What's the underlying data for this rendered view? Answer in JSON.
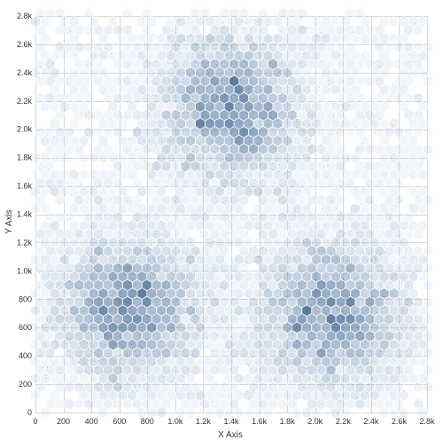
{
  "chart_data": {
    "type": "hexbin-scatter",
    "xlabel": "X Axis",
    "ylabel": "Y Axis",
    "xlim": [
      0,
      2800
    ],
    "ylim": [
      0,
      2800
    ],
    "x_ticks": [
      0,
      200,
      400,
      600,
      800,
      1000,
      1200,
      1400,
      1600,
      1800,
      2000,
      2200,
      2400,
      2600,
      2800
    ],
    "x_tick_labels": [
      "0",
      "200",
      "400",
      "600",
      "800",
      "1.0k",
      "1.2k",
      "1.4k",
      "1.6k",
      "1.8k",
      "2.0k",
      "2.2k",
      "2.4k",
      "2.6k",
      "2.8k"
    ],
    "y_ticks": [
      0,
      200,
      400,
      600,
      800,
      1000,
      1200,
      1400,
      1600,
      1800,
      2000,
      2200,
      2400,
      2600,
      2800
    ],
    "y_tick_labels": [
      "0",
      "200",
      "400",
      "600",
      "800",
      "1.0k",
      "1.2k",
      "1.4k",
      "1.6k",
      "1.8k",
      "2.0k",
      "2.2k",
      "2.4k",
      "2.6k",
      "2.8k"
    ],
    "grid": true,
    "colors": {
      "hex_low": "#dbe9f6",
      "hex_high": "#4a6f96",
      "points": "#2f5f8f",
      "grid": "#d6d6d6"
    },
    "clusters": [
      {
        "center": [
          1400,
          2150
        ],
        "spread": [
          280,
          300
        ]
      },
      {
        "center": [
          650,
          750
        ],
        "spread": [
          300,
          280
        ]
      },
      {
        "center": [
          2100,
          700
        ],
        "spread": [
          300,
          280
        ]
      }
    ],
    "hex_radius": 40,
    "point_count": 12000
  }
}
